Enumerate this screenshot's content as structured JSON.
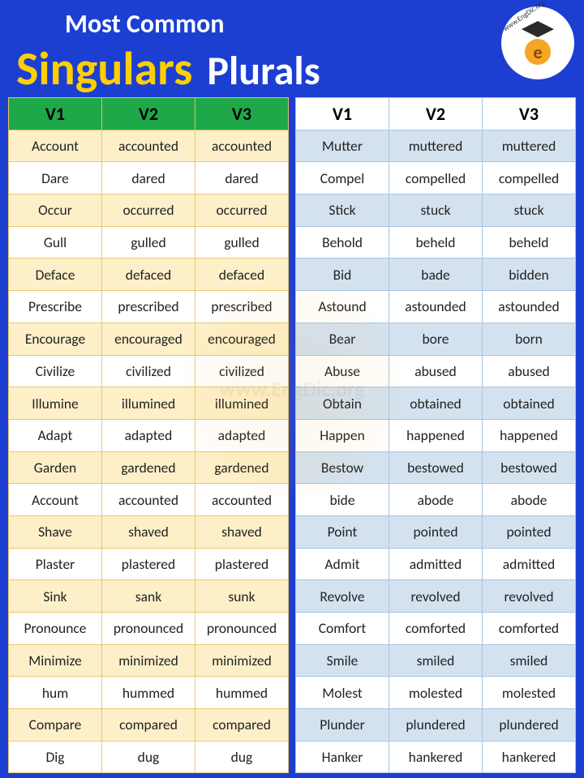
{
  "header": {
    "top": "Most Common",
    "singulars": "Singulars",
    "plurals": "Plurals"
  },
  "logo": {
    "url": "www.EngDic.org",
    "letter": "e"
  },
  "watermark": "www.EngDic.org",
  "leftTable": {
    "type": "table",
    "header_bg": "#1fa84a",
    "odd_bg": "#fdf0c9",
    "even_bg": "#ffffff",
    "border_color": "#e8c870",
    "columns": [
      "V1",
      "V2",
      "V3"
    ],
    "rows": [
      [
        "Account",
        "accounted",
        "accounted"
      ],
      [
        "Dare",
        "dared",
        "dared"
      ],
      [
        "Occur",
        "occurred",
        "occurred"
      ],
      [
        "Gull",
        "gulled",
        "gulled"
      ],
      [
        "Deface",
        "defaced",
        "defaced"
      ],
      [
        "Prescribe",
        "prescribed",
        "prescribed"
      ],
      [
        "Encourage",
        "encouraged",
        "encouraged"
      ],
      [
        "Civilize",
        "civilized",
        "civilized"
      ],
      [
        "Illumine",
        "illumined",
        "illumined"
      ],
      [
        "Adapt",
        "adapted",
        "adapted"
      ],
      [
        "Garden",
        "gardened",
        "gardened"
      ],
      [
        "Account",
        "accounted",
        "accounted"
      ],
      [
        "Shave",
        "shaved",
        "shaved"
      ],
      [
        "Plaster",
        "plastered",
        "plastered"
      ],
      [
        "Sink",
        "sank",
        "sunk"
      ],
      [
        "Pronounce",
        "pronounced",
        "pronounced"
      ],
      [
        "Minimize",
        "minimized",
        "minimized"
      ],
      [
        "hum",
        "hummed",
        "hummed"
      ],
      [
        "Compare",
        "compared",
        "compared"
      ],
      [
        "Dig",
        "dug",
        "dug"
      ]
    ]
  },
  "rightTable": {
    "type": "table",
    "header_bg": "#ffffff",
    "odd_bg": "#d4e2f0",
    "even_bg": "#ffffff",
    "border_color": "#a8c4e0",
    "columns": [
      "V1",
      "V2",
      "V3"
    ],
    "rows": [
      [
        "Mutter",
        "muttered",
        "muttered"
      ],
      [
        "Compel",
        "compelled",
        "compelled"
      ],
      [
        "Stick",
        "stuck",
        "stuck"
      ],
      [
        "Behold",
        "beheld",
        "beheld"
      ],
      [
        "Bid",
        "bade",
        "bidden"
      ],
      [
        "Astound",
        "astounded",
        "astounded"
      ],
      [
        "Bear",
        "bore",
        "born"
      ],
      [
        "Abuse",
        "abused",
        "abused"
      ],
      [
        "Obtain",
        "obtained",
        "obtained"
      ],
      [
        "Happen",
        "happened",
        "happened"
      ],
      [
        "Bestow",
        "bestowed",
        "bestowed"
      ],
      [
        "bide",
        "abode",
        "abode"
      ],
      [
        "Point",
        "pointed",
        "pointed"
      ],
      [
        "Admit",
        "admitted",
        "admitted"
      ],
      [
        "Revolve",
        "revolved",
        "revolved"
      ],
      [
        "Comfort",
        "comforted",
        "comforted"
      ],
      [
        "Smile",
        "smiled",
        "smiled"
      ],
      [
        "Molest",
        "molested",
        "molested"
      ],
      [
        "Plunder",
        "plundered",
        "plundered"
      ],
      [
        "Hanker",
        "hankered",
        "hankered"
      ]
    ]
  },
  "colors": {
    "page_bg": "#1c3fd1",
    "accent_yellow": "#ffd000",
    "white": "#ffffff"
  }
}
